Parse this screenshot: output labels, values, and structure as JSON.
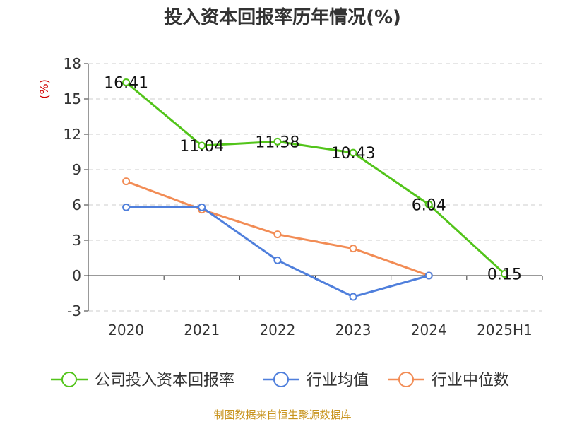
{
  "chart_data": {
    "type": "line",
    "title": "投入资本回报率历年情况(%)",
    "ylabel": "(%)",
    "categories": [
      "2020",
      "2021",
      "2022",
      "2023",
      "2024",
      "2025H1"
    ],
    "ylim": [
      -3,
      18
    ],
    "yticks": [
      "18",
      "15",
      "12",
      "9",
      "6",
      "3",
      "0",
      "-3"
    ],
    "grid": true,
    "legend_position": "bottom",
    "series": [
      {
        "name": "公司投入资本回报率",
        "color": "#52c41a",
        "values": [
          16.41,
          11.04,
          11.38,
          10.43,
          6.04,
          0.15
        ],
        "labels": [
          "16.41",
          "11.04",
          "11.38",
          "10.43",
          "6.04",
          "0.15"
        ]
      },
      {
        "name": "行业均值",
        "color": "#4f7fdc",
        "values": [
          5.8,
          5.8,
          1.3,
          -1.8,
          0.0,
          null
        ]
      },
      {
        "name": "行业中位数",
        "color": "#f28c55",
        "values": [
          8.0,
          5.6,
          3.5,
          2.3,
          0.0,
          null
        ]
      }
    ]
  },
  "source": "制图数据来自恒生聚源数据库"
}
